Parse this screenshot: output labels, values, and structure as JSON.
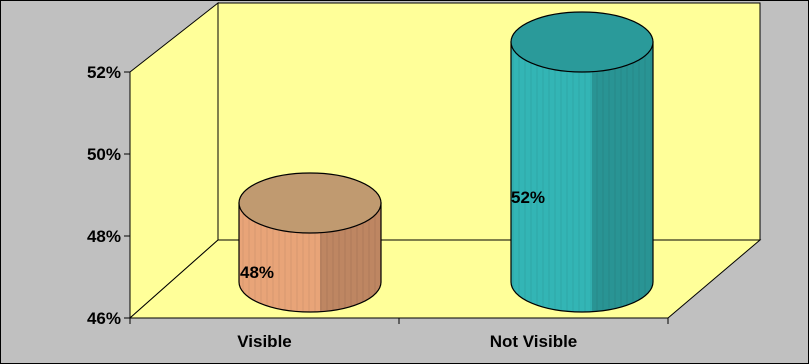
{
  "chart_data": {
    "type": "bar",
    "style": "3d-cylinder",
    "categories": [
      "Visible",
      "Not Visible"
    ],
    "values": [
      48,
      52
    ],
    "data_labels": [
      "48%",
      "52%"
    ],
    "y_ticks": [
      "46%",
      "48%",
      "50%",
      "52%"
    ],
    "ylim": [
      46,
      52
    ],
    "title": "",
    "xlabel": "",
    "ylabel": "",
    "grid": false,
    "legend": "none",
    "colors": {
      "chart_area": "#c0c0c0",
      "back_wall": "#ffff99",
      "floor": "#ffff99",
      "bars": [
        "#e8a478",
        "#33b5b5"
      ],
      "bar_tops": [
        "#c09a70",
        "#2a9a9a"
      ]
    }
  }
}
